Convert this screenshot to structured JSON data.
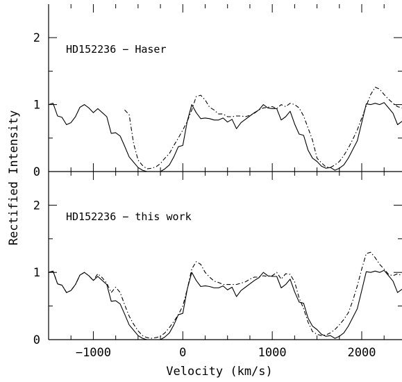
{
  "chart_data": {
    "type": "line",
    "xlabel": "Velocity (km/s)",
    "ylabel": "Rectified Intensity",
    "xlim": [
      -1500,
      2450
    ],
    "ylim": [
      0,
      2.5
    ],
    "x_ticks": [
      -1000,
      0,
      1000,
      2000
    ],
    "x_tick_labels": [
      "−1000",
      "0",
      "1000",
      "2000"
    ],
    "y_ticks": [
      0,
      1,
      2
    ],
    "y_tick_labels": [
      "0",
      "1",
      "2"
    ],
    "grid": false,
    "legend": "none",
    "panels": [
      {
        "label": "HD152236 − Haser",
        "series": [
          {
            "style": "solid",
            "x": [
              -1500,
              -1450,
              -1400,
              -1350,
              -1300,
              -1250,
              -1200,
              -1150,
              -1100,
              -1050,
              -1000,
              -950,
              -900,
              -850,
              -800,
              -750,
              -700,
              -650,
              -600,
              -550,
              -500,
              -450,
              -400,
              -350,
              -300,
              -250,
              -200,
              -150,
              -100,
              -50,
              0,
              50,
              100,
              150,
              200,
              250,
              300,
              350,
              400,
              450,
              500,
              550,
              600,
              650,
              700,
              750,
              800,
              850,
              900,
              950,
              1000,
              1050,
              1100,
              1150,
              1200,
              1250,
              1300,
              1350,
              1400,
              1450,
              1500,
              1550,
              1600,
              1650,
              1700,
              1750,
              1800,
              1850,
              1900,
              1950,
              2000,
              2050,
              2100,
              2150,
              2200,
              2250,
              2300,
              2350,
              2400,
              2450
            ],
            "y": [
              1.0,
              1.02,
              0.83,
              0.81,
              0.7,
              0.73,
              0.82,
              0.96,
              1.0,
              0.95,
              0.88,
              0.94,
              0.88,
              0.82,
              0.57,
              0.58,
              0.53,
              0.38,
              0.22,
              0.14,
              0.06,
              0.02,
              0.0,
              0.0,
              0.0,
              0.0,
              0.04,
              0.1,
              0.22,
              0.37,
              0.39,
              0.75,
              1.0,
              0.88,
              0.79,
              0.8,
              0.79,
              0.77,
              0.77,
              0.8,
              0.74,
              0.78,
              0.64,
              0.73,
              0.78,
              0.83,
              0.88,
              0.92,
              1.0,
              0.95,
              0.94,
              0.94,
              0.77,
              0.82,
              0.9,
              0.71,
              0.56,
              0.54,
              0.32,
              0.2,
              0.15,
              0.08,
              0.05,
              0.06,
              0.02,
              0.05,
              0.1,
              0.2,
              0.33,
              0.46,
              0.73,
              1.01,
              1.0,
              1.02,
              1.0,
              1.03,
              0.95,
              0.87,
              0.7,
              0.75
            ]
          },
          {
            "style": "dashdot",
            "x": [
              -650,
              -600,
              -550,
              -500,
              -450,
              -400,
              -350,
              -300,
              -250,
              -200,
              -150,
              -100,
              -50,
              0,
              50,
              100,
              150,
              200,
              250,
              300,
              350,
              400,
              450,
              500,
              550,
              600,
              650,
              700,
              750,
              800,
              850,
              900,
              950,
              1000,
              1050,
              1100,
              1150,
              1200,
              1250,
              1300,
              1350,
              1400,
              1450,
              1500,
              1550,
              1600,
              1650,
              1700,
              1750,
              1800,
              1850,
              1900,
              1950,
              2000,
              2050,
              2100,
              2150,
              2200,
              2250,
              2300,
              2350,
              2400,
              2450
            ],
            "y": [
              0.92,
              0.85,
              0.42,
              0.17,
              0.09,
              0.04,
              0.05,
              0.07,
              0.12,
              0.2,
              0.27,
              0.39,
              0.5,
              0.62,
              0.75,
              0.92,
              1.12,
              1.14,
              1.07,
              0.96,
              0.92,
              0.86,
              0.86,
              0.82,
              0.82,
              0.83,
              0.83,
              0.82,
              0.84,
              0.87,
              0.92,
              0.95,
              0.96,
              0.97,
              0.94,
              1.0,
              0.97,
              1.02,
              1.0,
              0.95,
              0.83,
              0.65,
              0.47,
              0.2,
              0.13,
              0.07,
              0.06,
              0.1,
              0.15,
              0.24,
              0.35,
              0.48,
              0.62,
              0.8,
              0.98,
              1.15,
              1.26,
              1.23,
              1.15,
              1.08,
              1.02,
              0.97,
              0.95
            ]
          }
        ]
      },
      {
        "label": "HD152236 − this work",
        "series": [
          {
            "style": "solid",
            "x": [
              -1500,
              -1450,
              -1400,
              -1350,
              -1300,
              -1250,
              -1200,
              -1150,
              -1100,
              -1050,
              -1000,
              -950,
              -900,
              -850,
              -800,
              -750,
              -700,
              -650,
              -600,
              -550,
              -500,
              -450,
              -400,
              -350,
              -300,
              -250,
              -200,
              -150,
              -100,
              -50,
              0,
              50,
              100,
              150,
              200,
              250,
              300,
              350,
              400,
              450,
              500,
              550,
              600,
              650,
              700,
              750,
              800,
              850,
              900,
              950,
              1000,
              1050,
              1100,
              1150,
              1200,
              1250,
              1300,
              1350,
              1400,
              1450,
              1500,
              1550,
              1600,
              1650,
              1700,
              1750,
              1800,
              1850,
              1900,
              1950,
              2000,
              2050,
              2100,
              2150,
              2200,
              2250,
              2300,
              2350,
              2400,
              2450
            ],
            "y": [
              1.0,
              1.02,
              0.83,
              0.81,
              0.7,
              0.73,
              0.82,
              0.96,
              1.0,
              0.95,
              0.88,
              0.94,
              0.88,
              0.82,
              0.57,
              0.58,
              0.53,
              0.38,
              0.22,
              0.14,
              0.06,
              0.02,
              0.0,
              0.0,
              0.0,
              0.0,
              0.04,
              0.1,
              0.22,
              0.37,
              0.39,
              0.75,
              1.0,
              0.88,
              0.79,
              0.8,
              0.79,
              0.77,
              0.77,
              0.8,
              0.74,
              0.78,
              0.64,
              0.73,
              0.78,
              0.83,
              0.88,
              0.92,
              1.0,
              0.95,
              0.94,
              0.94,
              0.77,
              0.82,
              0.9,
              0.71,
              0.56,
              0.54,
              0.32,
              0.2,
              0.15,
              0.08,
              0.05,
              0.06,
              0.02,
              0.05,
              0.1,
              0.2,
              0.33,
              0.46,
              0.73,
              1.01,
              1.0,
              1.02,
              1.0,
              1.03,
              0.95,
              0.87,
              0.7,
              0.75
            ]
          },
          {
            "style": "dashdot",
            "x": [
              -1500,
              -1450,
              -1400,
              -1350,
              -1300,
              -1250,
              -1200,
              -1150,
              -1100,
              -1050,
              -1000,
              -950,
              -900,
              -850,
              -800,
              -750,
              -700,
              -650,
              -600,
              -550,
              -500,
              -450,
              -400,
              -350,
              -300,
              -250,
              -200,
              -150,
              -100,
              -50,
              0,
              50,
              100,
              150,
              200,
              250,
              300,
              350,
              400,
              450,
              500,
              550,
              600,
              650,
              700,
              750,
              800,
              850,
              900,
              950,
              1000,
              1050,
              1100,
              1150,
              1200,
              1250,
              1300,
              1350,
              1400,
              1450,
              1500,
              1550,
              1600,
              1650,
              1700,
              1750,
              1800,
              1850,
              1900,
              1950,
              2000,
              2050,
              2100,
              2150,
              2200,
              2250,
              2300,
              2350,
              2400,
              2450
            ],
            "y": [
              1.0,
              1.02,
              0.83,
              0.81,
              0.7,
              0.73,
              0.82,
              0.96,
              1.0,
              0.95,
              0.88,
              0.98,
              0.92,
              0.84,
              0.7,
              0.78,
              0.7,
              0.52,
              0.35,
              0.23,
              0.13,
              0.06,
              0.03,
              0.02,
              0.03,
              0.05,
              0.1,
              0.18,
              0.27,
              0.37,
              0.5,
              0.75,
              1.05,
              1.16,
              1.12,
              1.0,
              0.93,
              0.87,
              0.85,
              0.82,
              0.82,
              0.82,
              0.82,
              0.84,
              0.86,
              0.9,
              0.93,
              0.93,
              0.95,
              0.94,
              0.95,
              1.0,
              0.9,
              0.98,
              0.97,
              0.86,
              0.62,
              0.46,
              0.26,
              0.12,
              0.08,
              0.06,
              0.07,
              0.1,
              0.15,
              0.22,
              0.3,
              0.4,
              0.58,
              0.8,
              1.05,
              1.28,
              1.3,
              1.22,
              1.12,
              1.05,
              0.97,
              0.95,
              0.98,
              0.95
            ]
          }
        ]
      }
    ]
  }
}
